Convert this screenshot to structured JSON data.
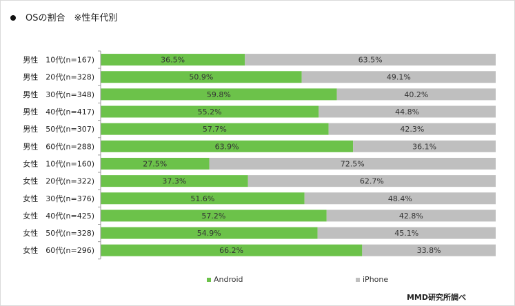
{
  "title": "OSの割合　※性年代別",
  "source": "MMD研究所調べ",
  "colors": {
    "android": "#6cc24a",
    "iphone": "#bfbfbf",
    "axis": "#9a9a9a"
  },
  "chart_data": {
    "type": "bar",
    "orientation": "horizontal",
    "stacked": true,
    "percent_stacked": true,
    "categories": [
      "男性　10代(n=167)",
      "男性　20代(n=328)",
      "男性　30代(n=348)",
      "男性　40代(n=417)",
      "男性　50代(n=307)",
      "男性　60代(n=288)",
      "女性　10代(n=160)",
      "女性　20代(n=322)",
      "女性　30代(n=376)",
      "女性　40代(n=425)",
      "女性　50代(n=328)",
      "女性　60代(n=296)"
    ],
    "series": [
      {
        "name": "Android",
        "values": [
          36.5,
          50.9,
          59.8,
          55.2,
          57.7,
          63.9,
          27.5,
          37.3,
          51.6,
          57.2,
          54.9,
          66.2
        ]
      },
      {
        "name": "iPhone",
        "values": [
          63.5,
          49.1,
          40.2,
          44.8,
          42.3,
          36.1,
          72.5,
          62.7,
          48.4,
          42.8,
          45.1,
          33.8
        ]
      }
    ],
    "value_labels_format": "{v}%",
    "xlim": [
      0,
      100
    ],
    "grid": false,
    "legend": "bottom"
  }
}
